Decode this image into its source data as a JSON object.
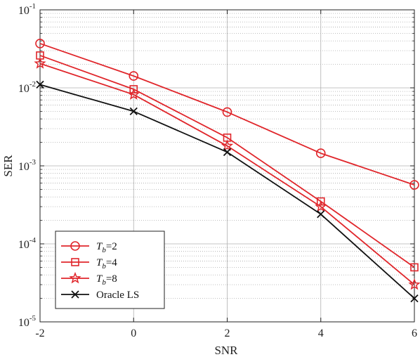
{
  "chart_data": {
    "type": "line",
    "xlabel": "SNR",
    "ylabel": "SER",
    "x": [
      -2,
      0,
      2,
      4,
      6
    ],
    "xlim": [
      -2,
      6
    ],
    "xticks": [
      "-2",
      "0",
      "2",
      "4",
      "6"
    ],
    "ylim": [
      1e-05,
      0.1
    ],
    "yscale": "log",
    "yticks": [
      {
        "base": "10",
        "exp": "-5",
        "value": 1e-05
      },
      {
        "base": "10",
        "exp": "-4",
        "value": 0.0001
      },
      {
        "base": "10",
        "exp": "-3",
        "value": 0.001
      },
      {
        "base": "10",
        "exp": "-2",
        "value": 0.01
      },
      {
        "base": "10",
        "exp": "-1",
        "value": 0.1
      }
    ],
    "grid": true,
    "legend_position": "bottom-left",
    "series": [
      {
        "name": "T_b=2",
        "legend_main": "T",
        "legend_sub": "b",
        "legend_rest": "=2",
        "color": "#e0262b",
        "marker": "circle",
        "values": [
          0.037,
          0.0142,
          0.0049,
          0.00145,
          0.00057
        ]
      },
      {
        "name": "T_b=4",
        "legend_main": "T",
        "legend_sub": "b",
        "legend_rest": "=4",
        "color": "#e0262b",
        "marker": "square",
        "values": [
          0.026,
          0.0096,
          0.0023,
          0.00035,
          5e-05
        ]
      },
      {
        "name": "T_b=8",
        "legend_main": "T",
        "legend_sub": "b",
        "legend_rest": "=8",
        "color": "#e0262b",
        "marker": "star",
        "values": [
          0.0205,
          0.0082,
          0.0018,
          0.0003,
          3e-05
        ]
      },
      {
        "name": "Oracle LS",
        "legend_main": "Oracle LS",
        "legend_sub": "",
        "legend_rest": "",
        "color": "#111111",
        "marker": "x",
        "values": [
          0.011,
          0.005,
          0.0015,
          0.00024,
          2e-05
        ]
      }
    ]
  }
}
